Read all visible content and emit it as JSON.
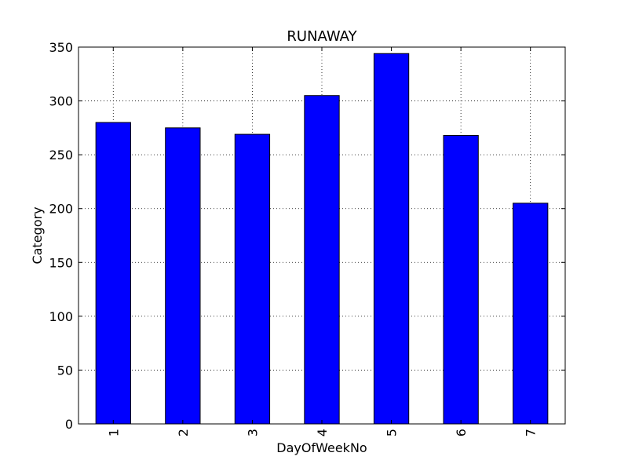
{
  "chart_data": {
    "type": "bar",
    "title": "RUNAWAY",
    "xlabel": "DayOfWeekNo",
    "ylabel": "Category",
    "categories": [
      "1",
      "2",
      "3",
      "4",
      "5",
      "6",
      "7"
    ],
    "values": [
      280,
      275,
      269,
      305,
      344,
      268,
      205
    ],
    "ylim": [
      0,
      350
    ],
    "yticks": [
      0,
      50,
      100,
      150,
      200,
      250,
      300,
      350
    ],
    "grid": true,
    "bar_color": "#0000ff",
    "edge_color": "#000000",
    "x_tick_rotation": "vertical"
  }
}
